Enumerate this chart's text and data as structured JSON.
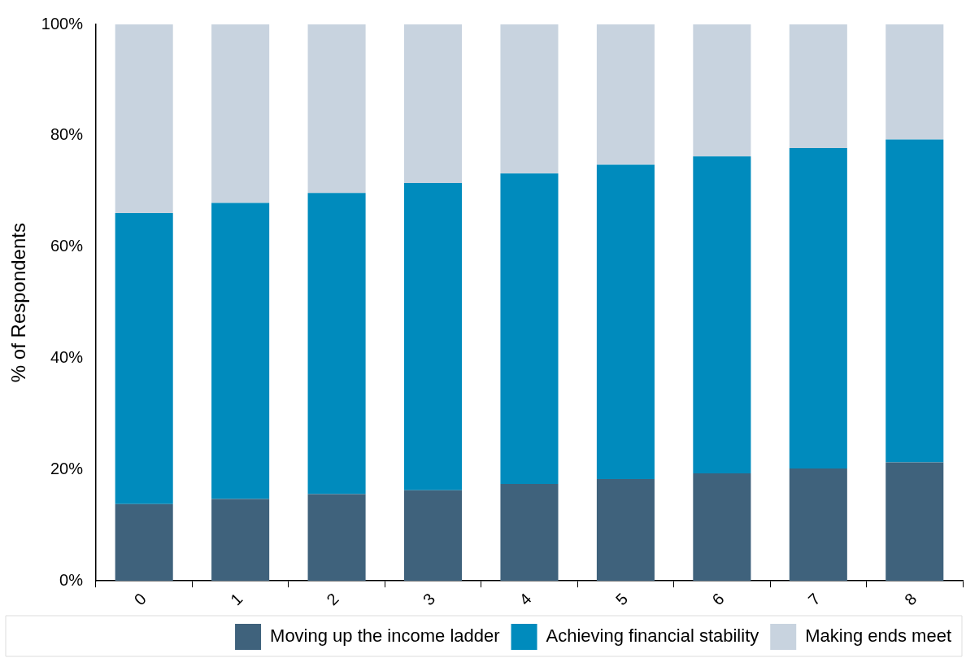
{
  "chart_data": {
    "type": "bar",
    "ylabel": "% of Respondents",
    "categories": [
      "0",
      "1",
      "2",
      "3",
      "4",
      "5",
      "6",
      "7",
      "8"
    ],
    "stacked": true,
    "legend": "bottom",
    "grid": false,
    "series": [
      {
        "name": "Moving up the income ladder",
        "color": "#3f627c",
        "values": [
          13.8,
          14.7,
          15.6,
          16.3,
          17.4,
          18.3,
          19.3,
          20.2,
          21.3
        ]
      },
      {
        "name": "Achieving financial stability",
        "color": "#008bbd",
        "values": [
          52.3,
          53.2,
          54.1,
          55.2,
          55.8,
          56.5,
          57.0,
          57.6,
          58.0
        ]
      },
      {
        "name": "Making ends meet",
        "color": "#c8d3df",
        "values": [
          33.9,
          32.1,
          30.3,
          28.5,
          26.8,
          25.2,
          23.7,
          22.2,
          20.7
        ]
      }
    ],
    "ylim": [
      0,
      100
    ],
    "yticks": [
      {
        "value": 0,
        "label": "0%"
      },
      {
        "value": 20,
        "label": "20%"
      },
      {
        "value": 40,
        "label": "40%"
      },
      {
        "value": 60,
        "label": "60%"
      },
      {
        "value": 80,
        "label": "80%"
      },
      {
        "value": 100,
        "label": "100%"
      }
    ]
  }
}
